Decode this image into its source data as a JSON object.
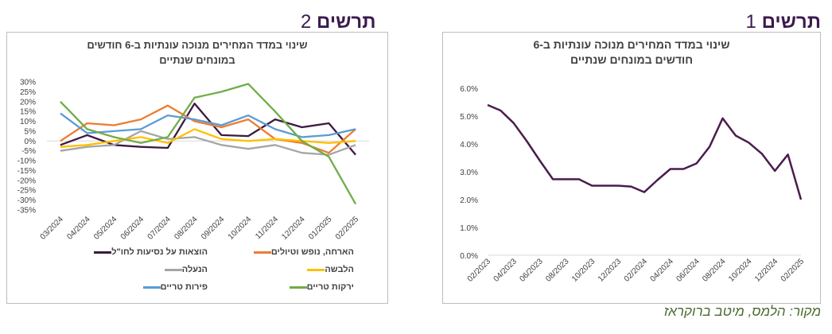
{
  "headings": {
    "fig1": {
      "word": "תרשים",
      "num": "1"
    },
    "fig2": {
      "word": "תרשים",
      "num": "2"
    }
  },
  "source": "מקור: הלמס, מיטב ברוקראז",
  "chart_data": [
    {
      "type": "line",
      "title_line1": "שינוי במדד המחירים מנוכה עונתיות ב-6",
      "title_line2": "חודשים במונחים שנתיים",
      "x": [
        "02/2023",
        "03/2023",
        "04/2023",
        "05/2023",
        "06/2023",
        "07/2023",
        "08/2023",
        "09/2023",
        "10/2023",
        "11/2023",
        "12/2023",
        "01/2024",
        "02/2024",
        "03/2024",
        "04/2024",
        "05/2024",
        "06/2024",
        "07/2024",
        "08/2024",
        "09/2024",
        "10/2024",
        "11/2024",
        "12/2024",
        "01/2025",
        "02/2025"
      ],
      "x_tick_labels": [
        "02/2023",
        "04/2023",
        "06/2023",
        "08/2023",
        "10/2023",
        "12/2023",
        "02/2024",
        "04/2024",
        "06/2024",
        "08/2024",
        "10/2024",
        "12/2024",
        "02/2025"
      ],
      "series": [
        {
          "color": "#4b1c4e",
          "values": [
            5.4,
            5.2,
            4.75,
            4.1,
            3.4,
            2.73,
            2.73,
            2.73,
            2.5,
            2.5,
            2.5,
            2.47,
            2.27,
            2.7,
            3.1,
            3.1,
            3.3,
            3.9,
            4.92,
            4.3,
            4.05,
            3.65,
            3.03,
            3.62,
            2.0
          ]
        }
      ],
      "y_tick_labels": [
        "0.0%",
        "1.0%",
        "2.0%",
        "3.0%",
        "4.0%",
        "5.0%",
        "6.0%"
      ],
      "ylim": [
        0,
        6
      ],
      "grid": false
    },
    {
      "type": "line",
      "title_line1": "שינוי במדד המחירים מנוכה עונתיות ב-6 חודשים",
      "title_line2": "במונחים שנתיים",
      "x": [
        "03/2024",
        "04/2024",
        "05/2024",
        "06/2024",
        "07/2024",
        "08/2024",
        "09/2024",
        "10/2024",
        "11/2024",
        "12/2024",
        "01/2025",
        "02/2025"
      ],
      "x_tick_labels": [
        "03/2024",
        "04/2024",
        "05/2024",
        "06/2024",
        "07/2024",
        "08/2024",
        "09/2024",
        "10/2024",
        "11/2024",
        "12/2024",
        "01/2025",
        "02/2025"
      ],
      "y_tick_labels": [
        "30%",
        "25%",
        "20%",
        "15%",
        "10%",
        "5%",
        "0%",
        "-5%",
        "-10%",
        "-15%",
        "-20%",
        "-25%",
        "-30%",
        "-35%"
      ],
      "ylim": [
        -35,
        30
      ],
      "grid": false,
      "series": [
        {
          "name": "הוצאות על נסיעות לחו\"ל",
          "color": "#3d1a3f",
          "values": [
            -2,
            3,
            -2,
            -3,
            -3.5,
            19,
            3,
            2.5,
            11,
            7,
            9,
            -7
          ]
        },
        {
          "name": "הארחה, נופש וטיולים",
          "color": "#ed7d31",
          "values": [
            0,
            9,
            8,
            11,
            18,
            10,
            7,
            11,
            1,
            -1,
            -6,
            6
          ]
        },
        {
          "name": "הנעלה",
          "color": "#a5a5a5",
          "values": [
            -5,
            -3,
            -2,
            5,
            1,
            2,
            -2,
            -4,
            -2,
            -6,
            -7,
            -2
          ]
        },
        {
          "name": "הלבשה",
          "color": "#ffc000",
          "values": [
            -3,
            -2,
            0,
            2,
            -1,
            6,
            1,
            0,
            1,
            0,
            -1,
            0
          ]
        },
        {
          "name": "פירות טריים",
          "color": "#5b9bd5",
          "values": [
            14,
            4,
            5,
            6,
            13,
            11,
            8,
            13,
            6,
            2,
            3,
            6
          ]
        },
        {
          "name": "ירקות טריים",
          "color": "#70ad47",
          "values": [
            20,
            6,
            2,
            -1,
            2,
            22,
            25,
            29,
            15,
            0,
            -8,
            -32
          ]
        }
      ]
    }
  ]
}
